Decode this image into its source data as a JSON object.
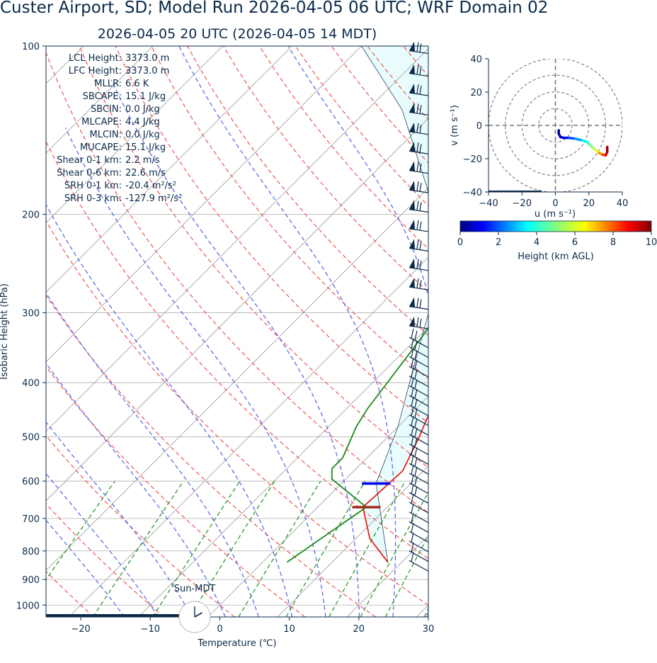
{
  "title": "Custer Airport, SD; Model Run 2026-04-05 06 UTC; WRF Domain 02",
  "subtitle": "2026-04-05 20 UTC  (2026-04-05 14 MDT)",
  "colors": {
    "text": "#0b2a4a",
    "temperature": "#e8201b",
    "dewpoint": "#1a8a1a",
    "parcel": "#0b2a4a",
    "cape_fill": "#e9fcfd",
    "dry_adiabat": "#ee5050",
    "moist_adiabat": "#4a5ce8",
    "mixing_ratio": "#2a9a2a",
    "isotherm": "#999999",
    "lcl_marker": "#0000ee",
    "ground_marker": "#a02a20"
  },
  "indices": [
    {
      "label": "LCL Height:",
      "value": "3373.0 m"
    },
    {
      "label": "LFC Height:",
      "value": "3373.0 m"
    },
    {
      "label": "MLLR:",
      "value": "6.6 K"
    },
    {
      "label": "SBCAPE:",
      "value": "15.1 J/kg"
    },
    {
      "label": "SBCIN:",
      "value": "0.0 J/kg"
    },
    {
      "label": "MLCAPE:",
      "value": "4.4 J/kg"
    },
    {
      "label": "MLCIN:",
      "value": "0.0 J/kg"
    },
    {
      "label": "MUCAPE:",
      "value": "15.1 J/kg"
    },
    {
      "label": "Shear 0-1 km:",
      "value": "2.2 m/s"
    },
    {
      "label": "Shear 0-6 km:",
      "value": "22.6 m/s"
    },
    {
      "label": "SRH 0-1 km:",
      "value": "-20.4 m²/s²"
    },
    {
      "label": "SRH 0-3 km:",
      "value": "-127.9 m²/s²"
    }
  ],
  "clock_label": "Sun-MDT",
  "clock_time": "14:00",
  "chart_data": [
    {
      "type": "line",
      "subtype": "skew-T log-p sounding",
      "xlabel": "Temperature (℃)",
      "ylabel": "Isobaric Height (hPa)",
      "xlim": [
        -25,
        30
      ],
      "ylim": [
        1050,
        100
      ],
      "y_scale": "log",
      "x_ticks": [
        -20,
        -10,
        0,
        10,
        20,
        30
      ],
      "y_ticks": [
        100,
        200,
        300,
        400,
        500,
        600,
        700,
        800,
        900,
        1000
      ],
      "surface_pressure_hPa": 838,
      "lcl_pressure_hPa": 606,
      "series": [
        {
          "name": "temperature",
          "points": [
            [
              18.0,
              838
            ],
            [
              12.0,
              760
            ],
            [
              6.5,
              668
            ],
            [
              6.8,
              615
            ],
            [
              7.0,
              575
            ],
            [
              4.5,
              500
            ],
            [
              1.0,
              420
            ],
            [
              -2.0,
              360
            ],
            [
              -5.0,
              300
            ],
            [
              -7.5,
              255
            ],
            [
              -8.5,
              230
            ],
            [
              -8.5,
              215
            ],
            [
              -4.0,
              185
            ],
            [
              2.0,
              155
            ],
            [
              8.0,
              135
            ],
            [
              12.0,
              120
            ],
            [
              15.0,
              100
            ]
          ]
        },
        {
          "name": "dewpoint",
          "points": [
            [
              3.5,
              838
            ],
            [
              5.0,
              760
            ],
            [
              7.0,
              668
            ],
            [
              -2.0,
              595
            ],
            [
              -3.5,
              570
            ],
            [
              -3.5,
              545
            ],
            [
              -6.0,
              480
            ],
            [
              -7.0,
              445
            ],
            [
              -9.0,
              350
            ],
            [
              -11.0,
              280
            ],
            [
              -13.0,
              245
            ],
            [
              -14.0,
              215
            ],
            [
              -13.0,
              190
            ],
            [
              -13.0,
              165
            ],
            [
              -7.0,
              130
            ],
            [
              -1.0,
              115
            ],
            [
              2.0,
              100
            ]
          ]
        },
        {
          "name": "parcel",
          "points": [
            [
              18.0,
              838
            ],
            [
              5.0,
              606
            ],
            [
              0.0,
              480
            ],
            [
              -6.0,
              380
            ],
            [
              -12.0,
              300
            ],
            [
              -20.0,
              230
            ],
            [
              -30.0,
              180
            ],
            [
              -45.0,
              130
            ],
            [
              -60.0,
              100
            ]
          ]
        }
      ],
      "wind_barbs_height_km": [
        0.05,
        0.35,
        0.65,
        0.95,
        1.25,
        1.55,
        1.85,
        2.15,
        2.45,
        2.75,
        3.05,
        3.35,
        3.65,
        3.95,
        4.25,
        4.55,
        4.85,
        5.15,
        5.45,
        5.75,
        6.05,
        6.35,
        6.65,
        6.95,
        7.3,
        7.9,
        8.5,
        9.1,
        9.7,
        10.3,
        10.9,
        11.5,
        12.1,
        12.7,
        13.3,
        13.9,
        14.5,
        15.1,
        15.8,
        16.5
      ],
      "grid": true
    },
    {
      "type": "line",
      "subtype": "hodograph",
      "xlabel": "u (m s⁻¹)",
      "ylabel": "v (m s⁻¹)",
      "xlim": [
        -40,
        40
      ],
      "ylim": [
        -40,
        40
      ],
      "x_ticks": [
        -40,
        -20,
        0,
        20,
        40
      ],
      "y_ticks": [
        -40,
        -20,
        0,
        20,
        40
      ],
      "rings_m_s": [
        10,
        20,
        30,
        40
      ],
      "colorbar": {
        "label": "Height (km AGL)",
        "range": [
          0,
          10
        ],
        "ticks": [
          0,
          2,
          4,
          6,
          8,
          10
        ],
        "colormap": "jet"
      },
      "points": [
        [
          2,
          -3,
          0
        ],
        [
          2,
          -5,
          0.3
        ],
        [
          3,
          -7,
          0.6
        ],
        [
          5,
          -7.5,
          1
        ],
        [
          8,
          -7.5,
          1.5
        ],
        [
          12,
          -8,
          2.2
        ],
        [
          16,
          -9,
          3
        ],
        [
          19,
          -10,
          3.8
        ],
        [
          21,
          -12,
          4.6
        ],
        [
          23,
          -14,
          5.4
        ],
        [
          25,
          -15.5,
          6.2
        ],
        [
          26,
          -16.5,
          7
        ],
        [
          28,
          -17.5,
          7.8
        ],
        [
          30,
          -18,
          8.6
        ],
        [
          31,
          -16,
          9.3
        ],
        [
          31,
          -13,
          10
        ]
      ]
    }
  ]
}
